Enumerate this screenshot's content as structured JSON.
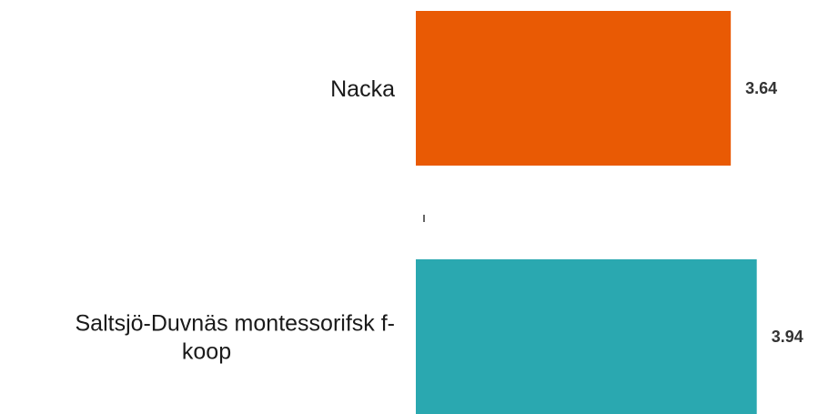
{
  "chart_data": {
    "type": "bar",
    "orientation": "horizontal",
    "categories": [
      "Nacka",
      "Saltsjö-Duvnäs montessorifsk f-koop"
    ],
    "category_lines": [
      [
        "Nacka"
      ],
      [
        "Saltsjö-Duvnäs montessorifsk f-",
        "koop"
      ]
    ],
    "values": [
      3.64,
      3.94
    ],
    "value_labels": [
      "3.64",
      "3.94"
    ],
    "colors": [
      "#E95A04",
      "#2AA8B0"
    ],
    "xlim": [
      0,
      4
    ],
    "grid": false,
    "legend": "none"
  }
}
